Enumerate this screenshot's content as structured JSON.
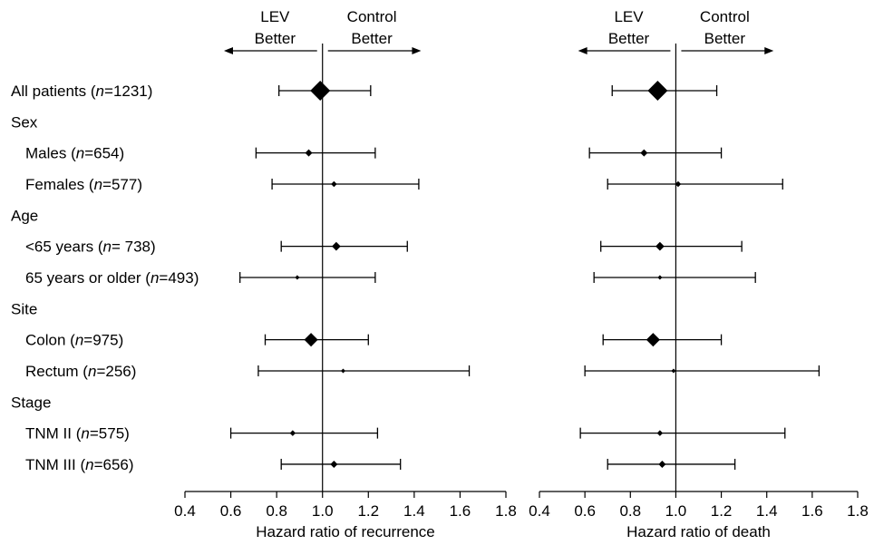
{
  "chart_data": {
    "type": "forest",
    "rows": [
      {
        "label_main": "All patients (",
        "label_n": "n",
        "label_rest": "=1231)",
        "indent": false,
        "is_header": false
      },
      {
        "label_main": "Sex",
        "indent": false,
        "is_header": true
      },
      {
        "label_main": "Males (",
        "label_n": "n",
        "label_rest": "=654)",
        "indent": true,
        "is_header": false
      },
      {
        "label_main": "Females (",
        "label_n": "n",
        "label_rest": "=577)",
        "indent": true,
        "is_header": false
      },
      {
        "label_main": "Age",
        "indent": false,
        "is_header": true
      },
      {
        "label_main": "<65 years (",
        "label_n": "n",
        "label_rest": "= 738)",
        "indent": true,
        "is_header": false
      },
      {
        "label_main": "65 years or older (",
        "label_n": "n",
        "label_rest": "=493)",
        "indent": true,
        "is_header": false
      },
      {
        "label_main": "Site",
        "indent": false,
        "is_header": true
      },
      {
        "label_main": "Colon (",
        "label_n": "n",
        "label_rest": "=975)",
        "indent": true,
        "is_header": false
      },
      {
        "label_main": "Rectum (",
        "label_n": "n",
        "label_rest": "=256)",
        "indent": true,
        "is_header": false
      },
      {
        "label_main": "Stage",
        "indent": false,
        "is_header": true
      },
      {
        "label_main": "TNM II (",
        "label_n": "n",
        "label_rest": "=575)",
        "indent": true,
        "is_header": false
      },
      {
        "label_main": "TNM III (",
        "label_n": "n",
        "label_rest": "=656)",
        "indent": true,
        "is_header": false
      }
    ],
    "panels": [
      {
        "xlabel": "Hazard ratio of recurrence",
        "xlim": [
          0.4,
          1.8
        ],
        "ticks": [
          "0.4",
          "0.6",
          "0.8",
          "1.0",
          "1.2",
          "1.4",
          "1.6",
          "1.8"
        ],
        "reference_line": 1.0,
        "left_annotation": [
          "LEV",
          "Better"
        ],
        "right_annotation": [
          "Control",
          "Better"
        ],
        "estimates": [
          {
            "row": 0,
            "hr": 0.99,
            "lower": 0.81,
            "upper": 1.21,
            "weight": 1231
          },
          {
            "row": 2,
            "hr": 0.94,
            "lower": 0.71,
            "upper": 1.23,
            "weight": 654
          },
          {
            "row": 3,
            "hr": 1.05,
            "lower": 0.78,
            "upper": 1.42,
            "weight": 577
          },
          {
            "row": 5,
            "hr": 1.06,
            "lower": 0.82,
            "upper": 1.37,
            "weight": 738
          },
          {
            "row": 6,
            "hr": 0.89,
            "lower": 0.64,
            "upper": 1.23,
            "weight": 493
          },
          {
            "row": 8,
            "hr": 0.95,
            "lower": 0.75,
            "upper": 1.2,
            "weight": 975
          },
          {
            "row": 9,
            "hr": 1.09,
            "lower": 0.72,
            "upper": 1.64,
            "weight": 256
          },
          {
            "row": 11,
            "hr": 0.87,
            "lower": 0.6,
            "upper": 1.24,
            "weight": 575
          },
          {
            "row": 12,
            "hr": 1.05,
            "lower": 0.82,
            "upper": 1.34,
            "weight": 656
          }
        ]
      },
      {
        "xlabel": "Hazard ratio of death",
        "xlim": [
          0.4,
          1.8
        ],
        "ticks": [
          "0.4",
          "0.6",
          "0.8",
          "1.0",
          "1.2",
          "1.4",
          "1.6",
          "1.8"
        ],
        "reference_line": 1.0,
        "left_annotation": [
          "LEV",
          "Better"
        ],
        "right_annotation": [
          "Control",
          "Better"
        ],
        "estimates": [
          {
            "row": 0,
            "hr": 0.92,
            "lower": 0.72,
            "upper": 1.18,
            "weight": 1231
          },
          {
            "row": 2,
            "hr": 0.86,
            "lower": 0.62,
            "upper": 1.2,
            "weight": 654
          },
          {
            "row": 3,
            "hr": 1.01,
            "lower": 0.7,
            "upper": 1.47,
            "weight": 577
          },
          {
            "row": 5,
            "hr": 0.93,
            "lower": 0.67,
            "upper": 1.29,
            "weight": 738
          },
          {
            "row": 6,
            "hr": 0.93,
            "lower": 0.64,
            "upper": 1.35,
            "weight": 493
          },
          {
            "row": 8,
            "hr": 0.9,
            "lower": 0.68,
            "upper": 1.2,
            "weight": 975
          },
          {
            "row": 9,
            "hr": 0.99,
            "lower": 0.6,
            "upper": 1.63,
            "weight": 256
          },
          {
            "row": 11,
            "hr": 0.93,
            "lower": 0.58,
            "upper": 1.48,
            "weight": 575
          },
          {
            "row": 12,
            "hr": 0.94,
            "lower": 0.7,
            "upper": 1.26,
            "weight": 656
          }
        ]
      }
    ]
  }
}
